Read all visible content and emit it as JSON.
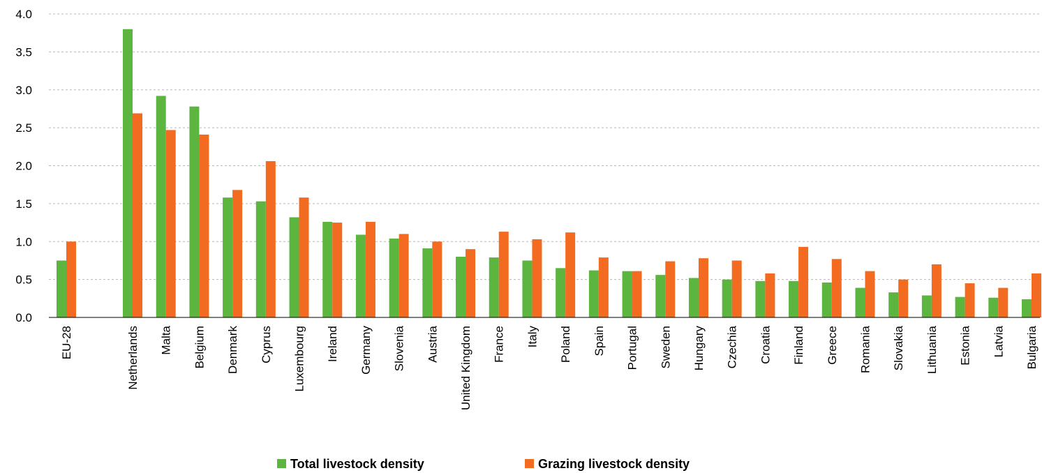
{
  "chart_data": {
    "type": "bar",
    "title": "",
    "xlabel": "",
    "ylabel": "",
    "ylim": [
      0,
      4.0
    ],
    "yticks": [
      0.0,
      0.5,
      1.0,
      1.5,
      2.0,
      2.5,
      3.0,
      3.5,
      4.0
    ],
    "ytick_labels": [
      "0.0",
      "0.5",
      "1.0",
      "1.5",
      "2.0",
      "2.5",
      "3.0",
      "3.5",
      "4.0"
    ],
    "grid": "horizontal dashed",
    "legend_position": "bottom-center",
    "categories": [
      "EU-28",
      "Netherlands",
      "Malta",
      "Belgium",
      "Denmark",
      "Cyprus",
      "Luxembourg",
      "Ireland",
      "Germany",
      "Slovenia",
      "Austria",
      "United Kingdom",
      "France",
      "Italy",
      "Poland",
      "Spain",
      "Portugal",
      "Sweden",
      "Hungary",
      "Czechia",
      "Croatia",
      "Finland",
      "Greece",
      "Romania",
      "Slovakia",
      "Lithuania",
      "Estonia",
      "Latvia",
      "Bulgaria"
    ],
    "series": [
      {
        "name": "Total livestock density",
        "color": "#5bb53f",
        "values": [
          0.75,
          3.8,
          2.92,
          2.78,
          1.58,
          1.53,
          1.32,
          1.26,
          1.09,
          1.04,
          0.91,
          0.8,
          0.79,
          0.75,
          0.65,
          0.62,
          0.61,
          0.56,
          0.52,
          0.5,
          0.48,
          0.48,
          0.46,
          0.39,
          0.33,
          0.29,
          0.27,
          0.26,
          0.24
        ]
      },
      {
        "name": "Grazing livestock density",
        "color": "#f26b21",
        "values": [
          1.0,
          2.69,
          2.47,
          2.41,
          1.68,
          2.06,
          1.58,
          1.25,
          1.26,
          1.1,
          1.0,
          0.9,
          1.13,
          1.03,
          1.12,
          0.79,
          0.61,
          0.74,
          0.78,
          0.75,
          0.58,
          0.93,
          0.77,
          0.61,
          0.5,
          0.7,
          0.45,
          0.39,
          0.58
        ]
      }
    ]
  }
}
